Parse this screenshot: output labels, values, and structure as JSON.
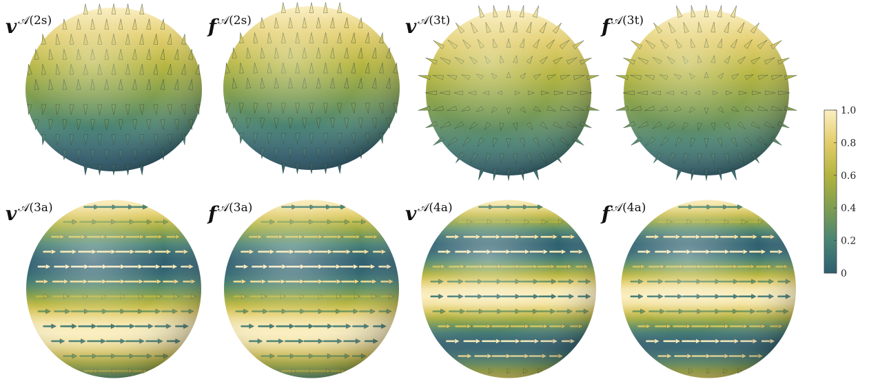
{
  "panels": [
    {
      "base": "v",
      "sup": "𝒜(2s)",
      "type": "radial-s"
    },
    {
      "base": "f",
      "sup": "𝒜(2s)",
      "type": "radial-s"
    },
    {
      "base": "v",
      "sup": "𝒜(3t)",
      "type": "radial-t"
    },
    {
      "base": "f",
      "sup": "𝒜(3t)",
      "type": "radial-t"
    },
    {
      "base": "v",
      "sup": "𝒜(3a)",
      "type": "azimuthal-3"
    },
    {
      "base": "f",
      "sup": "𝒜(3a)",
      "type": "azimuthal-3"
    },
    {
      "base": "v",
      "sup": "𝒜(4a)",
      "type": "azimuthal-4"
    },
    {
      "base": "f",
      "sup": "𝒜(4a)",
      "type": "azimuthal-4"
    }
  ],
  "colorbar": {
    "ticks": [
      "1.0",
      "0.8",
      "0.6",
      "0.4",
      "0.2",
      "0"
    ],
    "stops": [
      "#fbefc1",
      "#e2cd6b",
      "#b3b43f",
      "#7e9d50",
      "#4a8474",
      "#2e5f70"
    ]
  }
}
